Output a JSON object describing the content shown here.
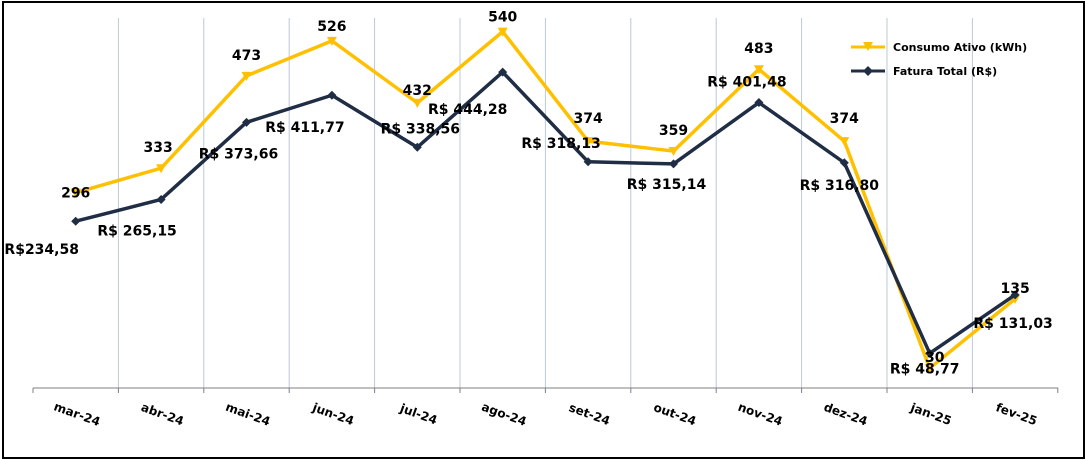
{
  "chart_data": {
    "type": "line",
    "title": "",
    "xlabel": "",
    "ylabel": "",
    "categories": [
      "mar-24",
      "abr-24",
      "mai-24",
      "jun-24",
      "jul-24",
      "ago-24",
      "set-24",
      "out-24",
      "nov-24",
      "dez-24",
      "jan-25",
      "fev-25"
    ],
    "grid": "vertical",
    "legend_position": "top-right",
    "series": [
      {
        "name": "Consumo Ativo (kWh)",
        "color": "#FFC000",
        "marker": "triangle-down",
        "values": [
          296,
          333,
          473,
          526,
          432,
          540,
          374,
          359,
          483,
          374,
          30,
          135
        ],
        "labels": [
          "296",
          "333",
          "473",
          "526",
          "432",
          "540",
          "374",
          "359",
          "483",
          "374",
          "30",
          "135"
        ]
      },
      {
        "name": "Fatura Total (R$)",
        "color": "#1F2D45",
        "marker": "diamond",
        "values": [
          234.58,
          265.15,
          373.66,
          411.77,
          338.56,
          444.28,
          318.13,
          315.14,
          401.48,
          316.8,
          48.77,
          131.03
        ],
        "labels": [
          "R$234,58",
          "R$ 265,15",
          "R$ 373,66",
          "R$ 411,77",
          "R$ 338,56",
          "R$ 444,28",
          "R$ 318,13",
          "R$ 315,14",
          "R$ 401,48",
          "R$ 316,80",
          "R$ 48,77",
          "R$ 131,03"
        ]
      }
    ]
  }
}
